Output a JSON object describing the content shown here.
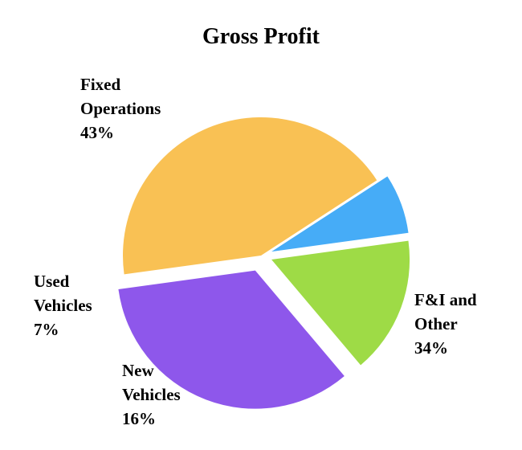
{
  "chart_data": {
    "type": "pie",
    "title": "Gross Profit",
    "slices": [
      {
        "label_lines": [
          "Fixed",
          "Operations"
        ],
        "percent_label": "43%",
        "value": 43,
        "color": "#F9C154"
      },
      {
        "label_lines": [
          "F&I and",
          "Other"
        ],
        "percent_label": "34%",
        "value": 34,
        "color": "#8E57EB"
      },
      {
        "label_lines": [
          "New",
          "Vehicles"
        ],
        "percent_label": "16%",
        "value": 16,
        "color": "#9EDB46"
      },
      {
        "label_lines": [
          "Used",
          "Vehicles"
        ],
        "percent_label": "7%",
        "value": 7,
        "color": "#46ACF7"
      }
    ],
    "legend": "none",
    "slices_exploded": true
  }
}
